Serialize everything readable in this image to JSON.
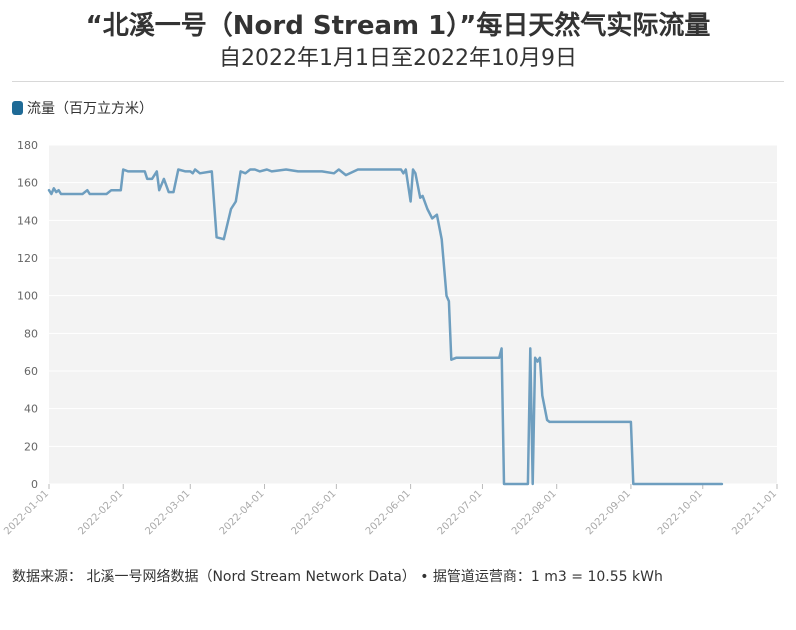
{
  "header": {
    "title": "“北溪一号（Nord Stream 1）”每日天然气实际流量",
    "subtitle": "自2022年1月1日至2022年10月9日"
  },
  "legend": {
    "label": "流量（百万立方米）"
  },
  "source": "数据来源： 北溪一号网络数据（Nord Stream Network Data） • 据管道运营商：1 m3 = 10.55 kWh",
  "colors": {
    "line": "#6e9ebf",
    "legend_swatch": "#1f6a96",
    "plot_bg": "#f3f3f3",
    "grid": "#ffffff"
  },
  "chart_data": {
    "type": "line",
    "title": "“北溪一号（Nord Stream 1）”每日天然气实际流量",
    "subtitle": "自2022年1月1日至2022年10月9日",
    "xlabel": "",
    "ylabel": "",
    "ylim": [
      0,
      180
    ],
    "yticks": [
      0,
      20,
      40,
      60,
      80,
      100,
      120,
      140,
      160,
      180
    ],
    "xlim": [
      "2022-01-01",
      "2022-11-01"
    ],
    "xticks": [
      "2022-01-01",
      "2022-02-01",
      "2022-03-01",
      "2022-04-01",
      "2022-05-01",
      "2022-06-01",
      "2022-07-01",
      "2022-08-01",
      "2022-09-01",
      "2022-10-01",
      "2022-11-01"
    ],
    "grid": true,
    "legend_position": "top-left",
    "series": [
      {
        "name": "流量（百万立方米）",
        "x": [
          "2022-01-01",
          "2022-01-02",
          "2022-01-03",
          "2022-01-04",
          "2022-01-05",
          "2022-01-06",
          "2022-01-08",
          "2022-01-10",
          "2022-01-15",
          "2022-01-17",
          "2022-01-18",
          "2022-01-20",
          "2022-01-25",
          "2022-01-27",
          "2022-01-29",
          "2022-01-30",
          "2022-01-31",
          "2022-02-01",
          "2022-02-03",
          "2022-02-10",
          "2022-02-11",
          "2022-02-13",
          "2022-02-15",
          "2022-02-16",
          "2022-02-18",
          "2022-02-20",
          "2022-02-22",
          "2022-02-24",
          "2022-02-27",
          "2022-03-01",
          "2022-03-02",
          "2022-03-03",
          "2022-03-05",
          "2022-03-10",
          "2022-03-12",
          "2022-03-15",
          "2022-03-18",
          "2022-03-20",
          "2022-03-22",
          "2022-03-24",
          "2022-03-26",
          "2022-03-28",
          "2022-03-30",
          "2022-04-02",
          "2022-04-04",
          "2022-04-10",
          "2022-04-15",
          "2022-04-20",
          "2022-04-25",
          "2022-04-30",
          "2022-05-02",
          "2022-05-05",
          "2022-05-10",
          "2022-05-15",
          "2022-05-20",
          "2022-05-25",
          "2022-05-28",
          "2022-05-29",
          "2022-05-30",
          "2022-06-01",
          "2022-06-02",
          "2022-06-03",
          "2022-06-05",
          "2022-06-06",
          "2022-06-08",
          "2022-06-10",
          "2022-06-12",
          "2022-06-14",
          "2022-06-15",
          "2022-06-16",
          "2022-06-17",
          "2022-06-18",
          "2022-06-20",
          "2022-06-30",
          "2022-07-08",
          "2022-07-09",
          "2022-07-10",
          "2022-07-11",
          "2022-07-12",
          "2022-07-18",
          "2022-07-20",
          "2022-07-21",
          "2022-07-22",
          "2022-07-23",
          "2022-07-24",
          "2022-07-25",
          "2022-07-26",
          "2022-07-28",
          "2022-07-29",
          "2022-07-31",
          "2022-08-05",
          "2022-08-31",
          "2022-09-01",
          "2022-09-02",
          "2022-10-09"
        ],
        "values": [
          156,
          154,
          157,
          155,
          156,
          154,
          154,
          154,
          154,
          156,
          154,
          154,
          154,
          156,
          156,
          156,
          156,
          167,
          166,
          166,
          162,
          162,
          166,
          156,
          162,
          155,
          155,
          167,
          166,
          166,
          165,
          167,
          165,
          166,
          131,
          130,
          146,
          150,
          166,
          165,
          167,
          167,
          166,
          167,
          166,
          167,
          166,
          166,
          166,
          165,
          167,
          164,
          167,
          167,
          167,
          167,
          167,
          165,
          167,
          150,
          167,
          165,
          152,
          153,
          146,
          141,
          143,
          130,
          115,
          100,
          97,
          66,
          67,
          67,
          67,
          72,
          0,
          0,
          0,
          0,
          0,
          72,
          0,
          67,
          65,
          67,
          47,
          34,
          33,
          33,
          33,
          33,
          33,
          0,
          0
        ]
      }
    ]
  }
}
